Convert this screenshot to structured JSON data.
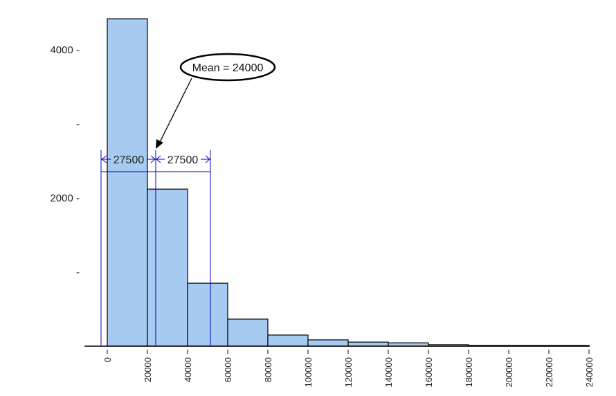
{
  "chart_data": {
    "type": "bar",
    "subtype": "histogram",
    "title": "",
    "xlabel": "",
    "ylabel": "",
    "bin_width": 20000,
    "bin_edges": [
      0,
      20000,
      40000,
      60000,
      80000,
      100000,
      120000,
      140000,
      160000,
      180000,
      200000,
      220000,
      240000
    ],
    "categories": [
      "0-20000",
      "20000-40000",
      "40000-60000",
      "60000-80000",
      "80000-100000",
      "100000-120000",
      "120000-140000",
      "140000-160000",
      "160000-180000",
      "180000-200000",
      "200000-220000",
      "220000-240000"
    ],
    "values": [
      4420,
      2120,
      850,
      365,
      150,
      85,
      55,
      45,
      20,
      10,
      10,
      10
    ],
    "xlim": [
      0,
      240000
    ],
    "ylim": [
      0,
      4450
    ],
    "x_ticks": [
      "0",
      "20000",
      "40000",
      "60000",
      "80000",
      "100000",
      "120000",
      "140000",
      "160000",
      "180000",
      "200000",
      "220000",
      "240000"
    ],
    "y_ticks": [
      {
        "value": 1000,
        "label": "-"
      },
      {
        "value": 2000,
        "label": "2000 -"
      },
      {
        "value": 3000,
        "label": "-"
      },
      {
        "value": 4000,
        "label": "4000 -"
      }
    ],
    "grid": false,
    "legend": null,
    "bar_color": "#a6caf0",
    "bar_edge_color": "#000000",
    "annotations": {
      "mean_callout": {
        "text": "Mean = 24000",
        "value": 24000
      },
      "std_dev_markers": {
        "color": "#0000cc",
        "left_label": "27500",
        "right_label": "27500",
        "left_x": -3500,
        "center_x": 24000,
        "right_x": 51500
      }
    }
  }
}
